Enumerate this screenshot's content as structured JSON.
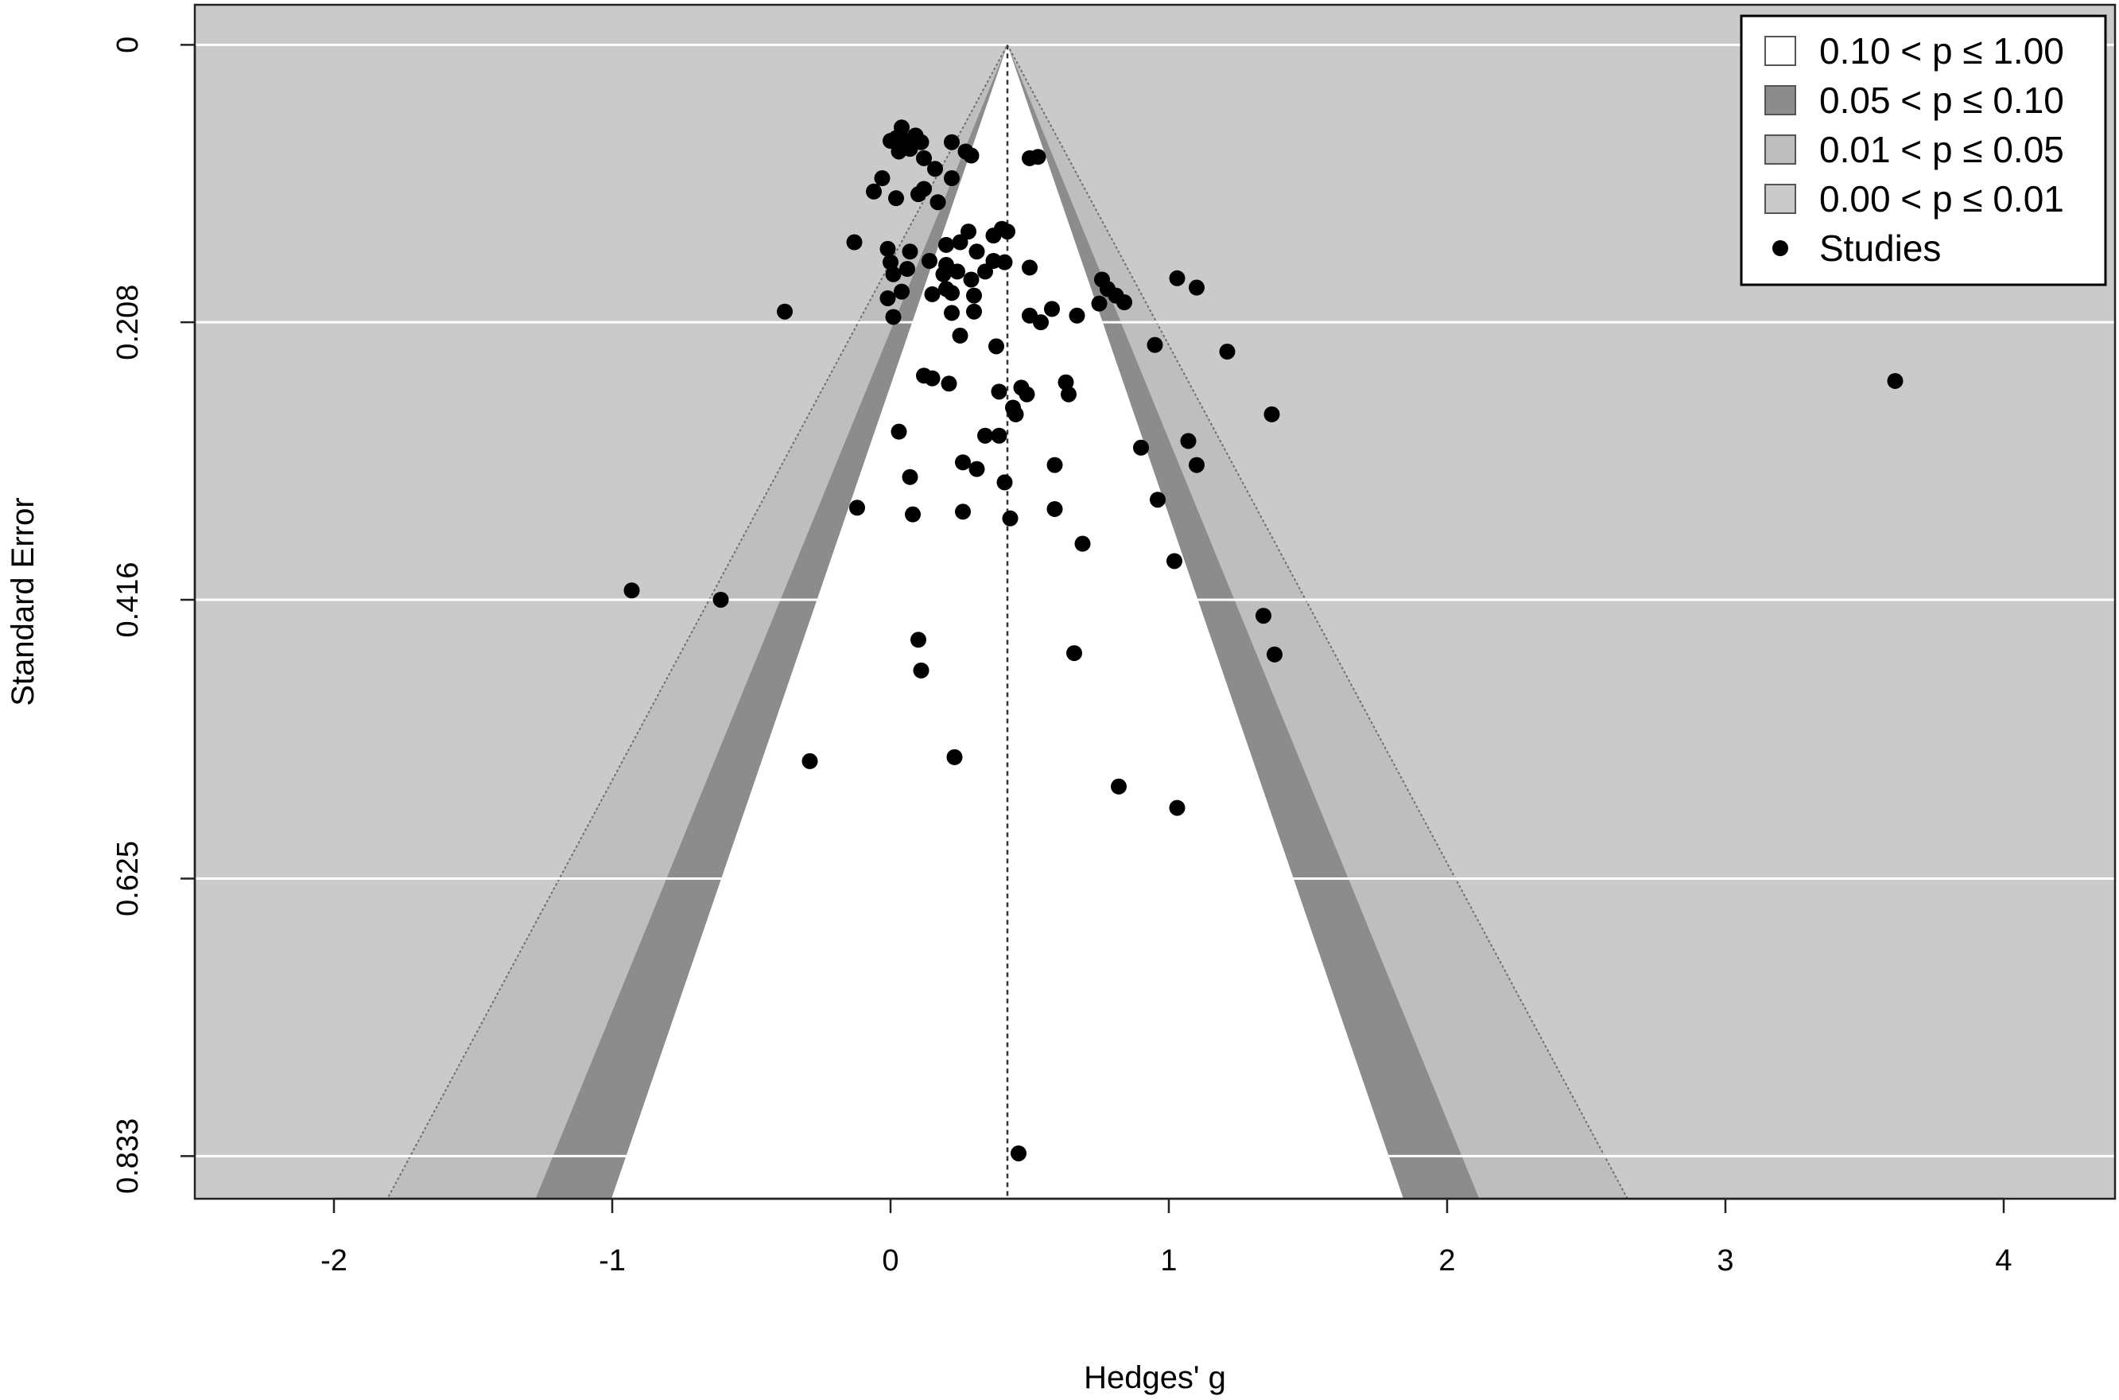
{
  "chart_data": {
    "type": "scatter",
    "subtype": "contour-enhanced funnel plot",
    "xlabel": "Hedges' g",
    "ylabel": "Standard Error",
    "xlim": [
      -2.5,
      4.4
    ],
    "ylim": [
      0.865,
      -0.03
    ],
    "y_reversed": true,
    "x_ticks": [
      -2,
      -1,
      0,
      1,
      2,
      3,
      4
    ],
    "x_tick_labels": [
      "-2",
      "-1",
      "0",
      "1",
      "2",
      "3",
      "4"
    ],
    "y_ticks": [
      0,
      0.208,
      0.416,
      0.625,
      0.833
    ],
    "y_tick_labels": [
      "0",
      "0.208",
      "0.416",
      "0.625",
      "0.833"
    ],
    "grid": "horizontal, white",
    "reference_line": {
      "x": 0.42,
      "style": "dotted"
    },
    "contours": [
      {
        "label": "0.10 < p ≤ 1.00",
        "z": 1.645,
        "color": "#ffffff"
      },
      {
        "label": "0.05 < p ≤ 0.10",
        "z": 1.96,
        "color": "#8c8c8c"
      },
      {
        "label": "0.01 < p ≤ 0.05",
        "z": 2.576,
        "color": "#bebebe"
      },
      {
        "label": "0.00 < p ≤ 0.01",
        "color": "#cacaca"
      }
    ],
    "legend": {
      "position": "top-right",
      "entries": [
        {
          "label": "0.10 < p ≤ 1.00",
          "symbol": "box",
          "color": "#ffffff"
        },
        {
          "label": "0.05 < p ≤ 0.10",
          "symbol": "box",
          "color": "#8c8c8c"
        },
        {
          "label": "0.01 < p ≤ 0.05",
          "symbol": "box",
          "color": "#bebebe"
        },
        {
          "label": "0.00 < p ≤ 0.01",
          "symbol": "box",
          "color": "#cacaca"
        },
        {
          "label": "Studies",
          "symbol": "dot",
          "color": "#000000"
        }
      ]
    },
    "series": [
      {
        "name": "Studies",
        "color": "#000000",
        "points": [
          [
            0.02,
            0.07
          ],
          [
            0.04,
            0.062
          ],
          [
            0.06,
            0.072
          ],
          [
            0.09,
            0.068
          ],
          [
            0.11,
            0.073
          ],
          [
            0.03,
            0.08
          ],
          [
            0.07,
            0.078
          ],
          [
            0.12,
            0.085
          ],
          [
            0.0,
            0.072
          ],
          [
            0.16,
            0.093
          ],
          [
            0.22,
            0.073
          ],
          [
            0.27,
            0.08
          ],
          [
            0.29,
            0.083
          ],
          [
            0.5,
            0.085
          ],
          [
            0.53,
            0.084
          ],
          [
            -0.03,
            0.1
          ],
          [
            -0.06,
            0.11
          ],
          [
            0.02,
            0.115
          ],
          [
            0.1,
            0.112
          ],
          [
            0.12,
            0.108
          ],
          [
            0.17,
            0.118
          ],
          [
            0.22,
            0.1
          ],
          [
            0.28,
            0.14
          ],
          [
            0.37,
            0.143
          ],
          [
            0.4,
            0.138
          ],
          [
            0.42,
            0.14
          ],
          [
            -0.13,
            0.148
          ],
          [
            -0.01,
            0.153
          ],
          [
            0.07,
            0.155
          ],
          [
            0.2,
            0.15
          ],
          [
            0.25,
            0.148
          ],
          [
            0.31,
            0.155
          ],
          [
            0.0,
            0.163
          ],
          [
            0.06,
            0.168
          ],
          [
            0.14,
            0.162
          ],
          [
            0.2,
            0.165
          ],
          [
            0.24,
            0.17
          ],
          [
            0.34,
            0.17
          ],
          [
            0.37,
            0.162
          ],
          [
            0.41,
            0.163
          ],
          [
            0.5,
            0.167
          ],
          [
            0.01,
            0.172
          ],
          [
            0.19,
            0.172
          ],
          [
            0.29,
            0.176
          ],
          [
            0.04,
            0.185
          ],
          [
            0.15,
            0.187
          ],
          [
            0.2,
            0.183
          ],
          [
            0.22,
            0.186
          ],
          [
            0.3,
            0.188
          ],
          [
            0.76,
            0.176
          ],
          [
            0.78,
            0.183
          ],
          [
            0.81,
            0.188
          ],
          [
            0.84,
            0.193
          ],
          [
            1.03,
            0.175
          ],
          [
            1.1,
            0.182
          ],
          [
            -0.38,
            0.2
          ],
          [
            -0.01,
            0.19
          ],
          [
            0.01,
            0.204
          ],
          [
            0.22,
            0.201
          ],
          [
            0.3,
            0.2
          ],
          [
            0.5,
            0.203
          ],
          [
            0.54,
            0.208
          ],
          [
            0.58,
            0.198
          ],
          [
            0.67,
            0.203
          ],
          [
            0.75,
            0.194
          ],
          [
            0.25,
            0.218
          ],
          [
            0.38,
            0.226
          ],
          [
            0.95,
            0.225
          ],
          [
            1.21,
            0.23
          ],
          [
            0.12,
            0.248
          ],
          [
            0.15,
            0.25
          ],
          [
            0.21,
            0.254
          ],
          [
            0.39,
            0.26
          ],
          [
            0.47,
            0.257
          ],
          [
            0.49,
            0.262
          ],
          [
            0.64,
            0.262
          ],
          [
            0.63,
            0.253
          ],
          [
            0.45,
            0.277
          ],
          [
            0.44,
            0.272
          ],
          [
            1.37,
            0.277
          ],
          [
            3.61,
            0.252
          ],
          [
            0.03,
            0.29
          ],
          [
            0.34,
            0.293
          ],
          [
            0.39,
            0.293
          ],
          [
            1.07,
            0.297
          ],
          [
            0.9,
            0.302
          ],
          [
            0.26,
            0.313
          ],
          [
            0.31,
            0.318
          ],
          [
            0.59,
            0.315
          ],
          [
            1.1,
            0.315
          ],
          [
            0.07,
            0.324
          ],
          [
            0.41,
            0.328
          ],
          [
            0.96,
            0.341
          ],
          [
            -0.12,
            0.347
          ],
          [
            0.08,
            0.352
          ],
          [
            0.26,
            0.35
          ],
          [
            0.43,
            0.355
          ],
          [
            0.59,
            0.348
          ],
          [
            0.69,
            0.374
          ],
          [
            1.02,
            0.387
          ],
          [
            -0.93,
            0.409
          ],
          [
            -0.61,
            0.416
          ],
          [
            1.34,
            0.428
          ],
          [
            0.1,
            0.446
          ],
          [
            1.38,
            0.457
          ],
          [
            0.11,
            0.469
          ],
          [
            0.66,
            0.456
          ],
          [
            -0.29,
            0.537
          ],
          [
            0.23,
            0.534
          ],
          [
            0.82,
            0.556
          ],
          [
            1.03,
            0.572
          ],
          [
            0.46,
            0.831
          ]
        ]
      }
    ]
  }
}
